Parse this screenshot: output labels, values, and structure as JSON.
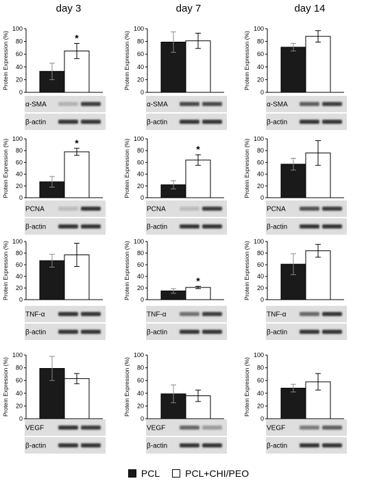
{
  "colors": {
    "pcl": "#1a1a1a",
    "pcl_chi_peo": "#ffffff",
    "axis": "#000000"
  },
  "legend": {
    "pcl": "PCL",
    "pcl_chi_peo": "PCL+CHI/PEO"
  },
  "days": [
    "day 3",
    "day 7",
    "day 14"
  ],
  "ylabel": "Protein Expression (%)",
  "loading_control": "β-actin",
  "markers": [
    "α-SMA",
    "PCNA",
    "TNF-α",
    "VEGF"
  ],
  "chart_data": [
    {
      "type": "bar",
      "day": "day 3",
      "marker": "α-SMA",
      "ylabel": "Protein Expression (%)",
      "ylim": [
        0,
        100
      ],
      "yticks": [
        0,
        20,
        40,
        60,
        80,
        100
      ],
      "categories": [
        "PCL",
        "PCL+CHI/PEO"
      ],
      "values": [
        33,
        65
      ],
      "errors": [
        13,
        12
      ],
      "significance": [
        false,
        true
      ]
    },
    {
      "type": "bar",
      "day": "day 7",
      "marker": "α-SMA",
      "ylabel": "Protein Expression (%)",
      "ylim": [
        0,
        100
      ],
      "yticks": [
        0,
        20,
        40,
        60,
        80,
        100
      ],
      "categories": [
        "PCL",
        "PCL+CHI/PEO"
      ],
      "values": [
        79,
        81
      ],
      "errors": [
        16,
        12
      ],
      "significance": [
        false,
        false
      ]
    },
    {
      "type": "bar",
      "day": "day 14",
      "marker": "α-SMA",
      "ylabel": "Protein Expression (%)",
      "ylim": [
        0,
        100
      ],
      "yticks": [
        0,
        20,
        40,
        60,
        80,
        100
      ],
      "categories": [
        "PCL",
        "PCL+CHI/PEO"
      ],
      "values": [
        71,
        88
      ],
      "errors": [
        6,
        9
      ],
      "significance": [
        false,
        false
      ]
    },
    {
      "type": "bar",
      "day": "day 3",
      "marker": "PCNA",
      "ylabel": "Protein Expression (%)",
      "ylim": [
        0,
        100
      ],
      "yticks": [
        0,
        20,
        40,
        60,
        80,
        100
      ],
      "categories": [
        "PCL",
        "PCL+CHI/PEO"
      ],
      "values": [
        27,
        78
      ],
      "errors": [
        9,
        6
      ],
      "significance": [
        false,
        true
      ]
    },
    {
      "type": "bar",
      "day": "day 7",
      "marker": "PCNA",
      "ylabel": "Protein Expression (%)",
      "ylim": [
        0,
        100
      ],
      "yticks": [
        0,
        20,
        40,
        60,
        80,
        100
      ],
      "categories": [
        "PCL",
        "PCL+CHI/PEO"
      ],
      "values": [
        22,
        64
      ],
      "errors": [
        7,
        9
      ],
      "significance": [
        false,
        true
      ]
    },
    {
      "type": "bar",
      "day": "day 14",
      "marker": "PCNA",
      "ylabel": "Protein Expression (%)",
      "ylim": [
        0,
        100
      ],
      "yticks": [
        0,
        20,
        40,
        60,
        80,
        100
      ],
      "categories": [
        "PCL",
        "PCL+CHI/PEO"
      ],
      "values": [
        57,
        76
      ],
      "errors": [
        10,
        21
      ],
      "significance": [
        false,
        false
      ]
    },
    {
      "type": "bar",
      "day": "day 3",
      "marker": "TNF-α",
      "ylabel": "Protein Expression (%)",
      "ylim": [
        0,
        100
      ],
      "yticks": [
        0,
        20,
        40,
        60,
        80,
        100
      ],
      "categories": [
        "PCL",
        "PCL+CHI/PEO"
      ],
      "values": [
        67,
        77
      ],
      "errors": [
        11,
        20
      ],
      "significance": [
        false,
        false
      ]
    },
    {
      "type": "bar",
      "day": "day 7",
      "marker": "TNF-α",
      "ylabel": "Protein Expression (%)",
      "ylim": [
        0,
        100
      ],
      "yticks": [
        0,
        20,
        40,
        60,
        80,
        100
      ],
      "categories": [
        "PCL",
        "PCL+CHI/PEO"
      ],
      "values": [
        15,
        21
      ],
      "errors": [
        4,
        2
      ],
      "significance": [
        false,
        true
      ]
    },
    {
      "type": "bar",
      "day": "day 14",
      "marker": "TNF-α",
      "ylabel": "Protein Expression (%)",
      "ylim": [
        0,
        100
      ],
      "yticks": [
        0,
        20,
        40,
        60,
        80,
        100
      ],
      "categories": [
        "PCL",
        "PCL+CHI/PEO"
      ],
      "values": [
        61,
        84
      ],
      "errors": [
        18,
        11
      ],
      "significance": [
        false,
        false
      ]
    },
    {
      "type": "bar",
      "day": "day 3",
      "marker": "VEGF",
      "ylabel": "Protein Expression (%)",
      "ylim": [
        0,
        100
      ],
      "yticks": [
        0,
        20,
        40,
        60,
        80,
        100
      ],
      "categories": [
        "PCL",
        "PCL+CHI/PEO"
      ],
      "values": [
        79,
        63
      ],
      "errors": [
        19,
        8
      ],
      "significance": [
        false,
        false
      ]
    },
    {
      "type": "bar",
      "day": "day 7",
      "marker": "VEGF",
      "ylabel": "Protein Expression (%)",
      "ylim": [
        0,
        100
      ],
      "yticks": [
        0,
        20,
        40,
        60,
        80,
        100
      ],
      "categories": [
        "PCL",
        "PCL+CHI/PEO"
      ],
      "values": [
        39,
        36
      ],
      "errors": [
        14,
        9
      ],
      "significance": [
        false,
        false
      ]
    },
    {
      "type": "bar",
      "day": "day 14",
      "marker": "VEGF",
      "ylabel": "Protein Expression (%)",
      "ylim": [
        0,
        100
      ],
      "yticks": [
        0,
        20,
        40,
        60,
        80,
        100
      ],
      "categories": [
        "PCL",
        "PCL+CHI/PEO"
      ],
      "values": [
        48,
        58
      ],
      "errors": [
        6,
        13
      ],
      "significance": [
        false,
        false
      ]
    }
  ]
}
